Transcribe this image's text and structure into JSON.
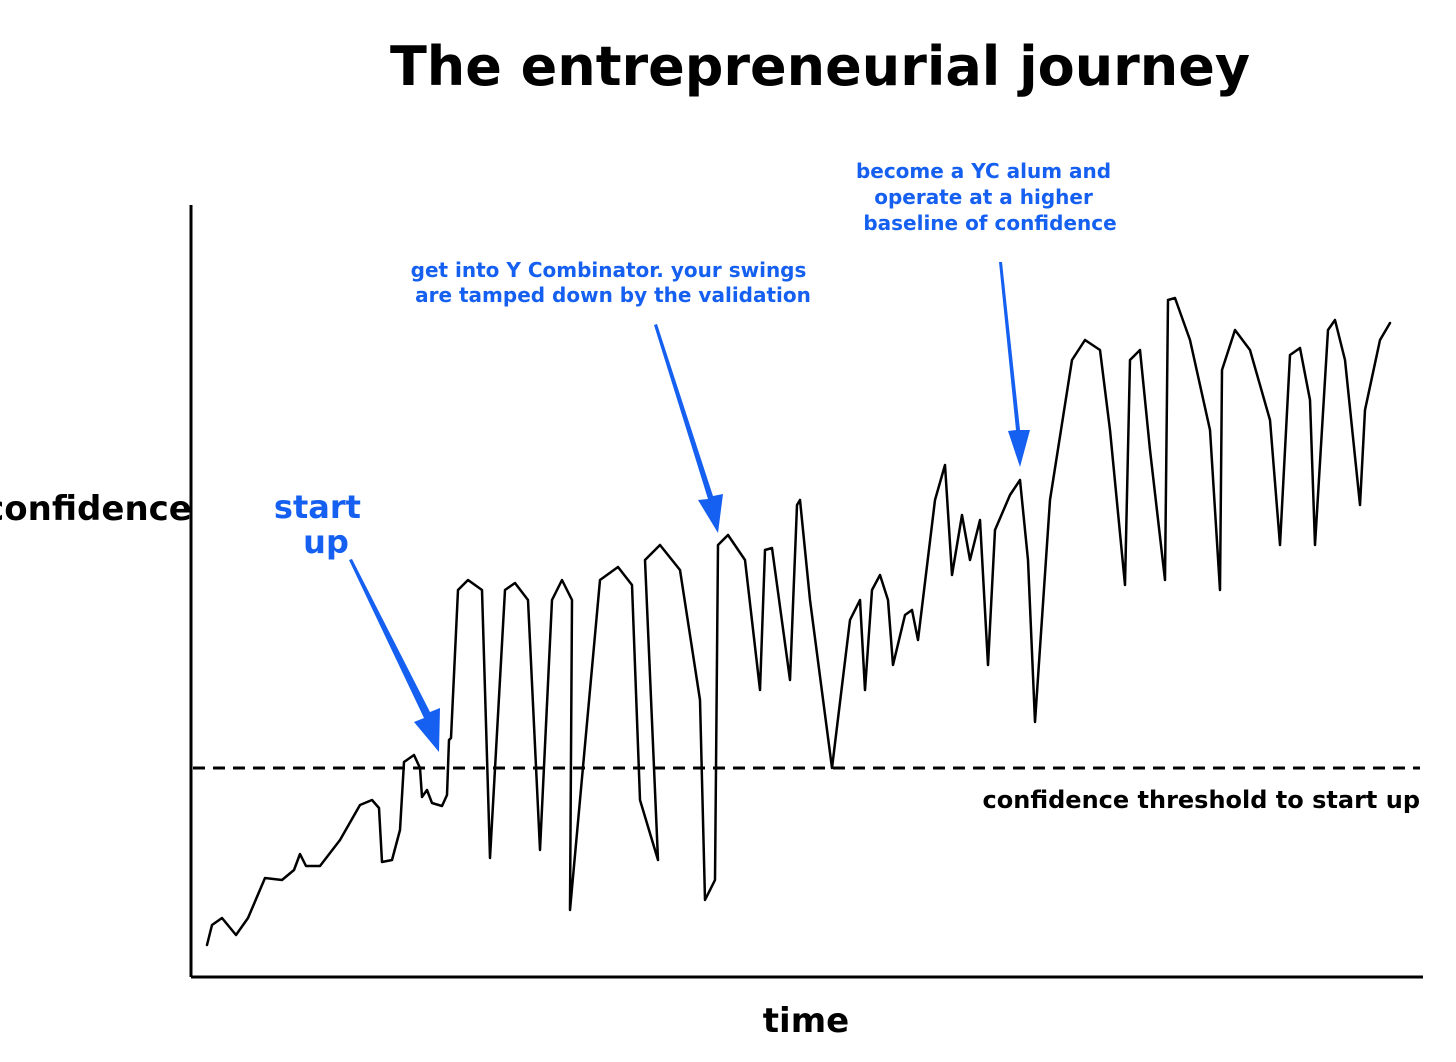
{
  "title": "The entrepreneurial journey",
  "y_axis_label": "confidence",
  "x_axis_label": "time",
  "threshold_label": "confidence threshold to start up",
  "annotations": [
    {
      "lines": [
        "start",
        "up"
      ]
    },
    {
      "lines": [
        "get into Y Combinator. your swings",
        "are tamped down by the validation"
      ]
    },
    {
      "lines": [
        "become a YC alum and",
        "operate at a higher",
        "baseline of confidence"
      ]
    }
  ]
}
